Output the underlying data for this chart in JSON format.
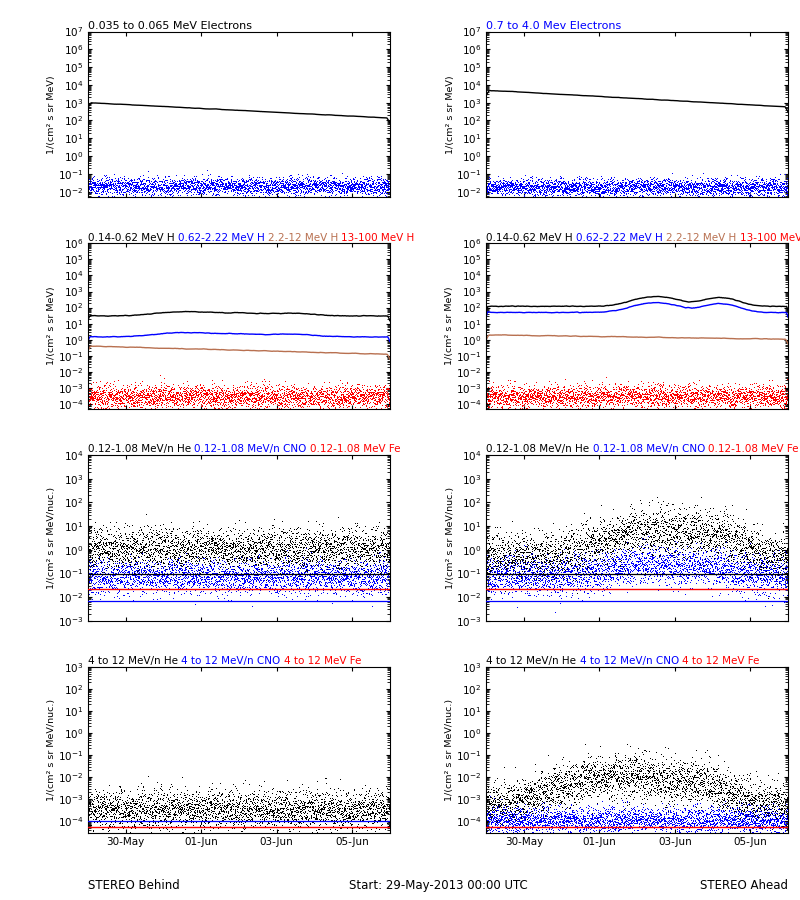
{
  "title_row0_left": "0.035 to 0.065 MeV Electrons",
  "title_row0_right": "0.7 to 4.0 Mev Electrons",
  "title_row0_right_color": "blue",
  "title_row1_labels": [
    "0.14-0.62 MeV H",
    "0.62-2.22 MeV H",
    "2.2-12 MeV H",
    "13-100 MeV H"
  ],
  "title_row1_colors": [
    "black",
    "blue",
    "#b87050",
    "red"
  ],
  "title_row2_labels": [
    "0.12-1.08 MeV/n He",
    "0.12-1.08 MeV/n CNO",
    "0.12-1.08 MeV Fe"
  ],
  "title_row2_colors": [
    "black",
    "blue",
    "red"
  ],
  "title_row3_labels": [
    "4 to 12 MeV/n He",
    "4 to 12 MeV/n CNO",
    "4 to 12 MeV Fe"
  ],
  "title_row3_colors": [
    "black",
    "blue",
    "red"
  ],
  "ylabel_mev": "1/(cm² s sr MeV)",
  "ylabel_nuc": "1/(cm² s sr MeV/nuc.)",
  "xtick_labels": [
    "30-May",
    "01-Jun",
    "03-Jun",
    "05-Jun"
  ],
  "bottom_left": "STEREO Behind",
  "bottom_center": "Start: 29-May-2013 00:00 UTC",
  "bottom_right": "STEREO Ahead",
  "bg_color": "white",
  "seed": 12345
}
